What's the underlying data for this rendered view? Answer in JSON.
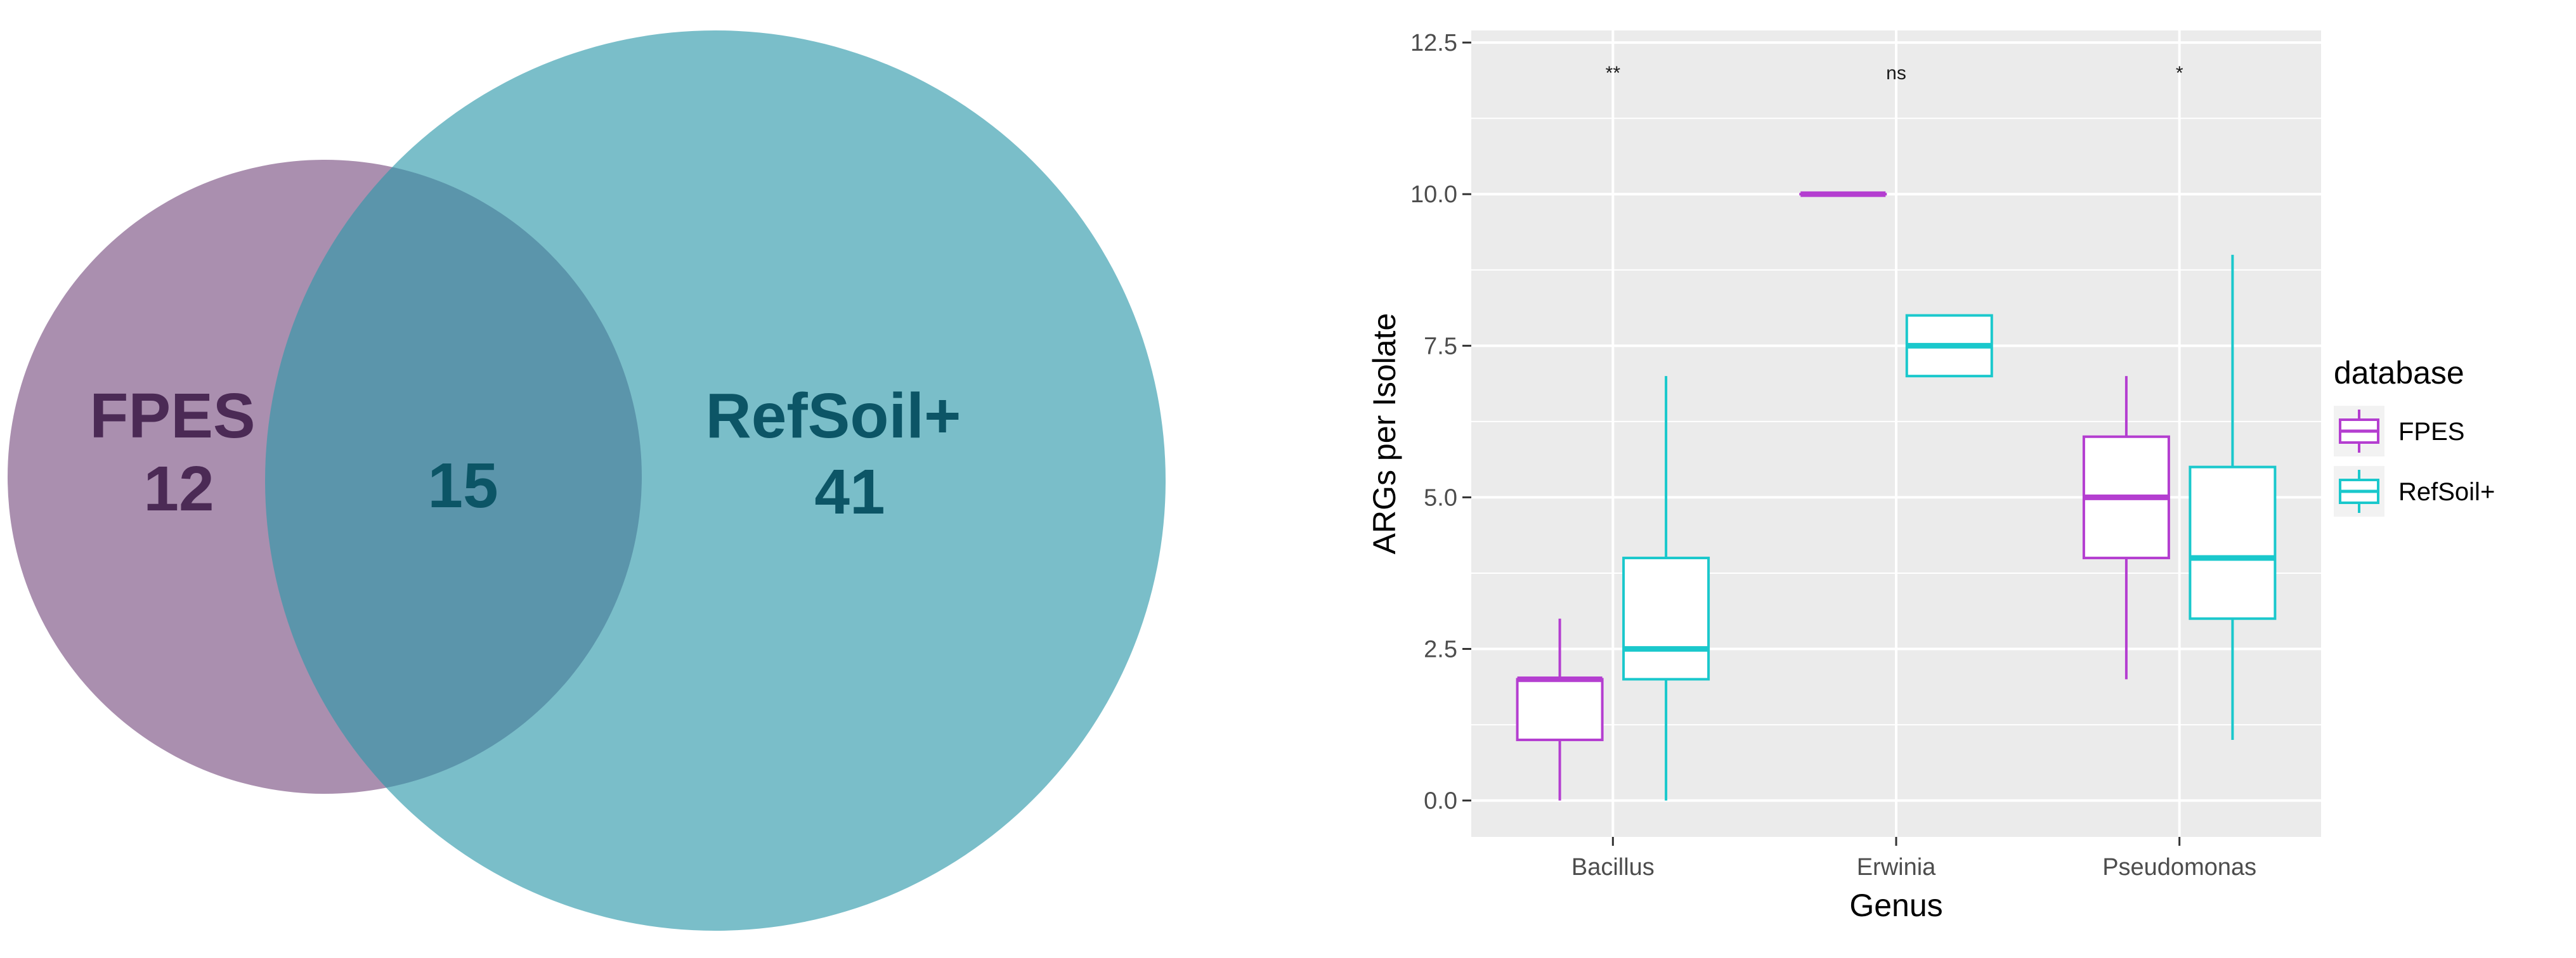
{
  "venn": {
    "sets": [
      {
        "name": "FPES",
        "count": "12",
        "color": "#7d5384",
        "text_color": "#4b2a55"
      },
      {
        "name": "RefSoil+",
        "count": "41",
        "color": "#2d98aa",
        "text_color": "#0c5566"
      }
    ],
    "intersection": "15"
  },
  "chart_data": {
    "type": "boxplot",
    "xlabel": "Genus",
    "ylabel": "ARGs per Isolate",
    "ylim": [
      -0.6,
      12.7
    ],
    "yticks": [
      "0.0",
      "2.5",
      "5.0",
      "7.5",
      "10.0",
      "12.5"
    ],
    "ytick_values": [
      0,
      2.5,
      5,
      7.5,
      10,
      12.5
    ],
    "categories": [
      "Bacillus",
      "Erwinia",
      "Pseudomonas"
    ],
    "significance": [
      "**",
      "ns",
      "*"
    ],
    "legend": {
      "title": "database",
      "placement": "right"
    },
    "grid": true,
    "background": "#ebebeb",
    "series": [
      {
        "name": "FPES",
        "color": "#b43ed0",
        "boxes": [
          {
            "min": 0,
            "q1": 1,
            "median": 2,
            "q3": 2,
            "max": 3
          },
          {
            "min": 10,
            "q1": 10,
            "median": 10,
            "q3": 10,
            "max": 10
          },
          {
            "min": 2,
            "q1": 4,
            "median": 5,
            "q3": 6,
            "max": 7
          }
        ]
      },
      {
        "name": "RefSoil+",
        "color": "#1ac8cc",
        "boxes": [
          {
            "min": 0,
            "q1": 2,
            "median": 2.5,
            "q3": 4,
            "max": 7
          },
          {
            "min": 7,
            "q1": 7,
            "median": 7.5,
            "q3": 8,
            "max": 8
          },
          {
            "min": 1,
            "q1": 3,
            "median": 4,
            "q3": 5.5,
            "max": 9
          }
        ]
      }
    ]
  }
}
